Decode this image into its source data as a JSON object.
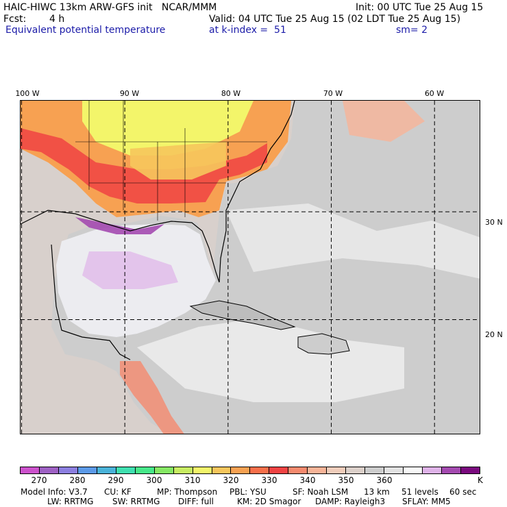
{
  "header": {
    "title": "HAIC-HIWC 13km ARW-GFS init   NCAR/MMM",
    "fcst_label": "Fcst:",
    "fcst_value": "4 h",
    "field_name": "Equivalent potential temperature",
    "init": "Init: 00 UTC Tue 25 Aug 15",
    "valid": "Valid: 04 UTC Tue 25 Aug 15 (02 LDT Tue 25 Aug 15)",
    "level": "at k-index =  51",
    "smoothing": "sm= 2"
  },
  "map": {
    "lon_labels": [
      "100 W",
      "90 W",
      "80 W",
      "70 W",
      "60 W"
    ],
    "lon_values": [
      -100,
      -90,
      -80,
      -70,
      -60
    ],
    "lat_labels": [
      "30 N",
      "20 N"
    ],
    "lat_values": [
      30,
      20
    ],
    "extent": {
      "lon_min": -100.1,
      "lon_max": -55.5,
      "lat_min": 9.3,
      "lat_max": 40.3
    },
    "grid_style": "dashed",
    "ocean_color": "#cdcdcd",
    "gulf_color": "#ececf0"
  },
  "colorbar": {
    "colors": [
      "#cc52cc",
      "#9e61c4",
      "#8c7fe0",
      "#5c9ae8",
      "#4ab3d9",
      "#3fe0b0",
      "#47e88a",
      "#86e864",
      "#c8ec62",
      "#f3f56a",
      "#f6c65c",
      "#f7a152",
      "#f76f4a",
      "#f04343",
      "#f58a6e",
      "#f7b498",
      "#f0cdbb",
      "#dcd0ca",
      "#cdcdcd",
      "#e2e2e2",
      "#f8f8f8",
      "#dfb3e8",
      "#a44ab0",
      "#7a0a7e"
    ],
    "tick_labels": [
      "270",
      "280",
      "290",
      "300",
      "310",
      "320",
      "330",
      "340",
      "350",
      "360"
    ],
    "tick_values": [
      270,
      280,
      290,
      300,
      310,
      320,
      330,
      340,
      350,
      360
    ],
    "range": [
      265,
      385
    ],
    "unit": "K"
  },
  "footer": {
    "line1": [
      "Model Info: V3.7",
      "CU: KF",
      "MP: Thompson",
      "PBL: YSU",
      "SF: Noah LSM",
      "13 km",
      "51 levels",
      "60 sec"
    ],
    "line2": [
      "LW: RRTMG",
      "SW: RRTMG",
      "DIFF: full",
      "KM: 2D Smagor",
      "DAMP: Rayleigh3",
      "SFLAY: MM5"
    ]
  }
}
